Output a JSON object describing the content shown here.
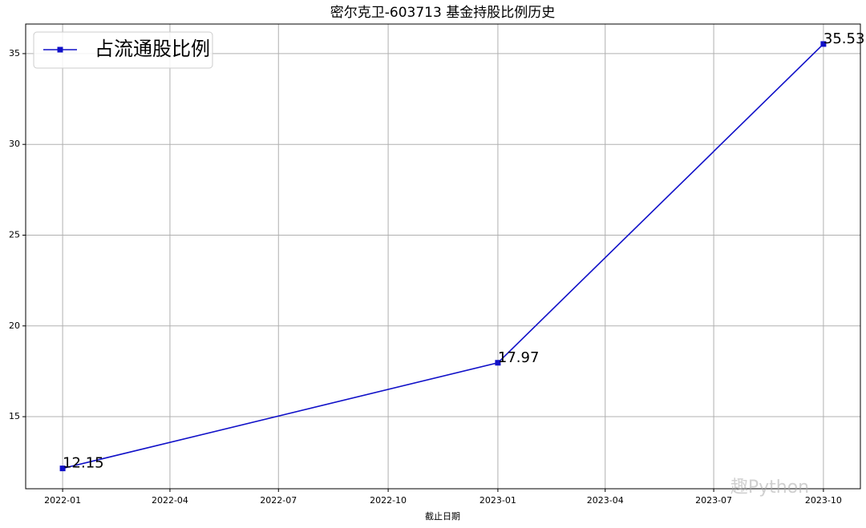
{
  "chart_data": {
    "type": "line",
    "title": "密尔克卫-603713 基金持股比例历史",
    "x_label": "截止日期",
    "x": [
      "2022-01",
      "2023-01",
      "2023-10"
    ],
    "series": [
      {
        "name": "占流通股比例",
        "color": "#1010c8",
        "values": [
          12.15,
          17.97,
          35.53
        ]
      }
    ],
    "xlim": [
      "2021-12",
      "2023-11"
    ],
    "xticks": [
      "2022-01",
      "2022-04",
      "2022-07",
      "2022-10",
      "2023-01",
      "2023-04",
      "2023-07",
      "2023-10"
    ],
    "ylim": [
      11.03,
      36.63
    ],
    "yticks": [
      15,
      20,
      25,
      30,
      35
    ],
    "grid": true,
    "legend": "upper left",
    "watermark": "趣Python"
  }
}
